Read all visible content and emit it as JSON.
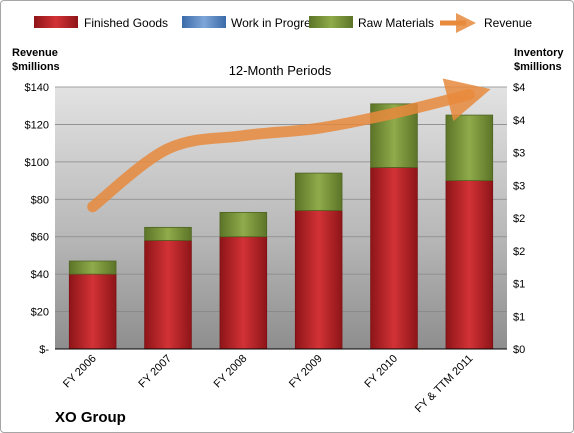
{
  "chart_data": {
    "type": "bar",
    "title": "12-Month Periods",
    "company": "XO Group",
    "left_axis": {
      "label_line1": "Revenue",
      "label_line2": "$millions",
      "min": 0,
      "max": 140,
      "step": 20,
      "ticks": [
        "$-",
        "$20",
        "$40",
        "$60",
        "$80",
        "$100",
        "$120",
        "$140"
      ]
    },
    "right_axis": {
      "label_line1": "Inventory",
      "label_line2": "$millions",
      "ticks": [
        "$0",
        "$1",
        "$1",
        "$2",
        "$2",
        "$3",
        "$3",
        "$4",
        "$4"
      ]
    },
    "categories": [
      "FY 2006",
      "FY 2007",
      "FY 2008",
      "FY 2009",
      "FY 2010",
      "FY & TTM 2011"
    ],
    "stacked": true,
    "series": [
      {
        "name": "Finished Goods",
        "color": "#c0282c",
        "values": [
          40,
          58,
          60,
          74,
          97,
          90
        ]
      },
      {
        "name": "Work in Progress",
        "color": "#4f81bd",
        "values": [
          0,
          0,
          0,
          0,
          0,
          0
        ]
      },
      {
        "name": "Raw Materials",
        "color": "#7f9a3e",
        "values": [
          7,
          7,
          13,
          20,
          34,
          35
        ]
      }
    ],
    "line_series": {
      "name": "Revenue",
      "color": "#e88a3c",
      "values": [
        76,
        107,
        114,
        118,
        126,
        136
      ]
    },
    "legend": "top",
    "grid": true
  }
}
